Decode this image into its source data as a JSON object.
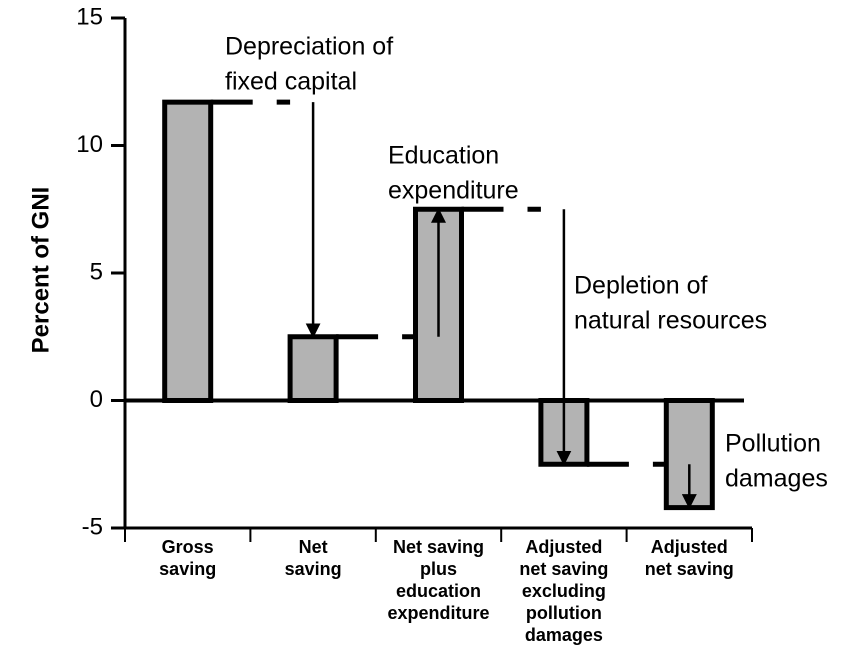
{
  "chart_data": {
    "type": "bar",
    "y_axis_label": "Percent of GNI",
    "categories": [
      [
        "Gross",
        "saving"
      ],
      [
        "Net",
        "saving"
      ],
      [
        "Net saving",
        "plus",
        "education",
        "expenditure"
      ],
      [
        "Adjusted",
        "net saving",
        "excluding",
        "pollution",
        "damages"
      ],
      [
        "Adjusted",
        "net saving"
      ]
    ],
    "values": [
      11.7,
      2.5,
      7.5,
      -2.5,
      -4.2
    ],
    "color": "#b3b3b3",
    "ylim": [
      -5,
      15
    ],
    "yticks": [
      -5,
      0,
      5,
      10,
      15
    ],
    "annotations": [
      [
        "Depreciation of",
        "fixed capital"
      ],
      [
        "Education",
        "expenditure"
      ],
      [
        "Depletion of",
        "natural resources"
      ],
      [
        "Pollution",
        "damages"
      ]
    ]
  }
}
